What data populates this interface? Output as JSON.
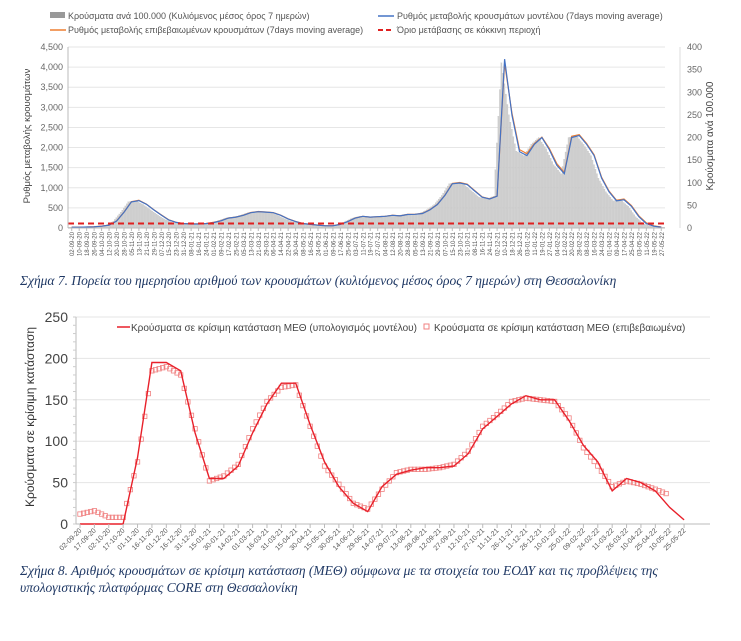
{
  "chart_data": [
    {
      "type": "bar",
      "title": "",
      "legend": {
        "placement": "top",
        "entries": [
          "Κρούσματα ανά 100.000 (Κυλιόμενος μέσος όρος 7 ημερών)",
          "Ρυθμός μεταβολής κρουσμάτων μοντέλου (7days moving average)",
          "Ρυθμός μεταβολής επιβεβαιωμένων κρουσμάτων (7days moving average)",
          "Όριο μετάβασης σε κόκκινη περιοχή"
        ]
      },
      "ylabel": "Ρυθμός μεταβολής κρουσμάτων",
      "y2label": "Κρούσματα ανά 100.000",
      "ylim": [
        0,
        4500
      ],
      "y2lim": [
        0,
        400
      ],
      "yticks": [
        "0",
        "500",
        "1,000",
        "1,500",
        "2,000",
        "2,500",
        "3,000",
        "3,500",
        "4,000",
        "4,500"
      ],
      "y2ticks": [
        "0",
        "50",
        "100",
        "150",
        "200",
        "250",
        "300",
        "350",
        "400"
      ],
      "grid": true,
      "x": [
        "02-09-20",
        "10-09-20",
        "18-09-20",
        "26-09-20",
        "04-10-20",
        "12-10-20",
        "20-10-20",
        "28-10-20",
        "05-11-20",
        "13-11-20",
        "21-11-20",
        "29-11-20",
        "07-12-20",
        "15-12-20",
        "23-12-20",
        "31-12-20",
        "08-01-21",
        "16-01-21",
        "24-01-21",
        "01-02-21",
        "09-02-21",
        "17-02-21",
        "25-02-21",
        "05-03-21",
        "13-03-21",
        "21-03-21",
        "29-03-21",
        "06-04-21",
        "14-04-21",
        "22-04-21",
        "30-04-21",
        "08-05-21",
        "16-05-21",
        "24-05-21",
        "01-06-21",
        "09-06-21",
        "17-06-21",
        "25-06-21",
        "03-07-21",
        "11-07-21",
        "19-07-21",
        "27-07-21",
        "04-08-21",
        "12-08-21",
        "20-08-21",
        "28-08-21",
        "05-09-21",
        "13-09-21",
        "21-09-21",
        "29-09-21",
        "07-10-21",
        "15-10-21",
        "23-10-21",
        "31-10-21",
        "08-11-21",
        "16-11-21",
        "24-11-21",
        "02-12-21",
        "10-12-21",
        "18-12-21",
        "26-12-21",
        "03-01-22",
        "11-01-22",
        "19-01-22",
        "27-01-22",
        "04-02-22",
        "12-02-22",
        "20-02-22",
        "28-02-22",
        "08-03-22",
        "16-03-22",
        "24-03-22",
        "01-04-22",
        "09-04-22",
        "17-04-22",
        "25-04-22",
        "03-05-22",
        "11-05-22",
        "19-05-22",
        "27-05-22"
      ],
      "series": [
        {
          "name": "Κρούσματα ανά 100.000 (Κυλιόμενος μέσος όρος 7 ημερών)",
          "kind": "bar",
          "axis": "right",
          "color": "#c8c8c8",
          "values": [
            2,
            2,
            2,
            3,
            4,
            6,
            15,
            35,
            58,
            60,
            52,
            40,
            28,
            18,
            12,
            10,
            9,
            9,
            10,
            12,
            16,
            22,
            24,
            28,
            34,
            36,
            35,
            34,
            28,
            20,
            14,
            10,
            8,
            6,
            5,
            5,
            8,
            14,
            22,
            26,
            24,
            25,
            26,
            28,
            27,
            30,
            30,
            32,
            40,
            52,
            72,
            98,
            100,
            96,
            82,
            68,
            64,
            70,
            365,
            250,
            170,
            160,
            185,
            200,
            175,
            140,
            120,
            200,
            205,
            185,
            160,
            110,
            80,
            60,
            62,
            48,
            25,
            10,
            4,
            2
          ]
        },
        {
          "name": "Ρυθμός μεταβολής κρουσμάτων μοντέλου (7days moving average)",
          "kind": "line",
          "axis": "left",
          "color": "#4472c4",
          "values": [
            20,
            20,
            25,
            30,
            45,
            70,
            170,
            390,
            650,
            680,
            590,
            450,
            320,
            200,
            140,
            110,
            100,
            100,
            110,
            135,
            180,
            245,
            270,
            315,
            380,
            405,
            395,
            380,
            315,
            225,
            160,
            110,
            90,
            70,
            55,
            55,
            90,
            160,
            245,
            290,
            270,
            280,
            290,
            315,
            300,
            335,
            340,
            360,
            450,
            585,
            810,
            1100,
            1120,
            1080,
            920,
            765,
            720,
            790,
            4200,
            2800,
            1900,
            1800,
            2080,
            2250,
            1950,
            1560,
            1350,
            2250,
            2300,
            2080,
            1800,
            1240,
            900,
            675,
            700,
            540,
            280,
            110,
            45,
            20
          ]
        },
        {
          "name": "Ρυθμός μεταβολής επιβεβαιωμένων κρουσμάτων (7days moving average)",
          "kind": "line",
          "axis": "left",
          "color": "#ed7d31",
          "values": [
            22,
            22,
            26,
            32,
            46,
            72,
            175,
            395,
            655,
            690,
            595,
            455,
            325,
            205,
            142,
            112,
            102,
            102,
            112,
            138,
            182,
            248,
            272,
            318,
            385,
            410,
            398,
            382,
            318,
            228,
            162,
            112,
            92,
            72,
            57,
            57,
            92,
            162,
            248,
            292,
            272,
            282,
            292,
            318,
            302,
            338,
            342,
            362,
            455,
            590,
            815,
            1110,
            1130,
            1090,
            930,
            770,
            725,
            795,
            4100,
            2850,
            1950,
            1850,
            2100,
            2260,
            1980,
            1600,
            1380,
            2280,
            2320,
            2100,
            1820,
            1260,
            920,
            690,
            720,
            560,
            300,
            130,
            55,
            25
          ]
        },
        {
          "name": "Όριο μετάβασης σε κόκκινη περιοχή",
          "kind": "hline",
          "axis": "right",
          "color": "#e02020",
          "value": 10
        }
      ]
    },
    {
      "type": "line",
      "title": "",
      "legend": {
        "placement": "top-right",
        "entries": [
          "Κρούσματα σε κρίσιμη κατάσταση ΜΕΘ (υπολογισμός μοντέλου)",
          "Κρούσματα σε κρίσιμη κατάσταση ΜΕΘ (επιβεβαιωμένα)"
        ]
      },
      "ylabel": "Κρούσματα σε κρίσιμη κατάσταση",
      "xlabel": "",
      "ylim": [
        0,
        250
      ],
      "yticks": [
        "0",
        "50",
        "100",
        "150",
        "200",
        "250"
      ],
      "grid": true,
      "x": [
        "02-09-20",
        "17-09-20",
        "02-10-20",
        "17-10-20",
        "01-11-20",
        "16-11-20",
        "01-12-20",
        "16-12-20",
        "31-12-20",
        "15-01-21",
        "30-01-21",
        "14-02-21",
        "01-03-21",
        "16-03-21",
        "31-03-21",
        "15-04-21",
        "30-04-21",
        "15-05-21",
        "30-05-21",
        "14-06-21",
        "29-06-21",
        "14-07-21",
        "29-07-21",
        "13-08-21",
        "28-08-21",
        "12-09-21",
        "27-09-21",
        "12-10-21",
        "27-10-21",
        "11-11-21",
        "26-11-21",
        "11-12-21",
        "26-12-21",
        "10-01-22",
        "25-01-22",
        "09-02-22",
        "24-02-22",
        "11-03-22",
        "26-03-22",
        "10-04-22",
        "25-04-22",
        "10-05-22",
        "25-05-22"
      ],
      "series": [
        {
          "name": "Κρούσματα σε κρίσιμη κατάσταση ΜΕΘ (υπολογισμός μοντέλου)",
          "kind": "line",
          "color": "#e8202a",
          "values": [
            0,
            0,
            0,
            0,
            80,
            195,
            195,
            185,
            110,
            55,
            55,
            70,
            110,
            145,
            170,
            170,
            120,
            75,
            45,
            25,
            15,
            45,
            60,
            65,
            68,
            68,
            70,
            85,
            115,
            130,
            145,
            155,
            150,
            150,
            125,
            95,
            75,
            40,
            55,
            50,
            40,
            20,
            5
          ]
        },
        {
          "name": "Κρούσματα σε κρίσιμη κατάσταση ΜΕΘ (επιβεβαιωμένα)",
          "kind": "scatter",
          "color": "#f08080",
          "values": [
            12,
            16,
            8,
            8,
            75,
            185,
            190,
            180,
            115,
            52,
            58,
            72,
            115,
            148,
            165,
            168,
            118,
            70,
            48,
            25,
            18,
            42,
            62,
            66,
            66,
            68,
            72,
            88,
            118,
            132,
            148,
            152,
            150,
            148,
            128,
            92,
            70,
            45,
            52,
            48,
            42,
            35,
            null
          ]
        }
      ]
    }
  ],
  "captions": {
    "fig7": "Σχήμα 7. Πορεία του ημερησίου αριθμού των κρουσμάτων (κυλιόμενος μέσος όρος 7 ημερών) στη Θεσσαλονίκη",
    "fig8": "Σχήμα 8. Αριθμός κρουσμάτων σε κρίσιμη κατάσταση (ΜΕΘ) σύμφωνα με τα στοιχεία του ΕΟΔΥ και τις προβλέψεις της υπολογιστικής πλατφόρμας CORE στη Θεσσαλονίκη"
  }
}
